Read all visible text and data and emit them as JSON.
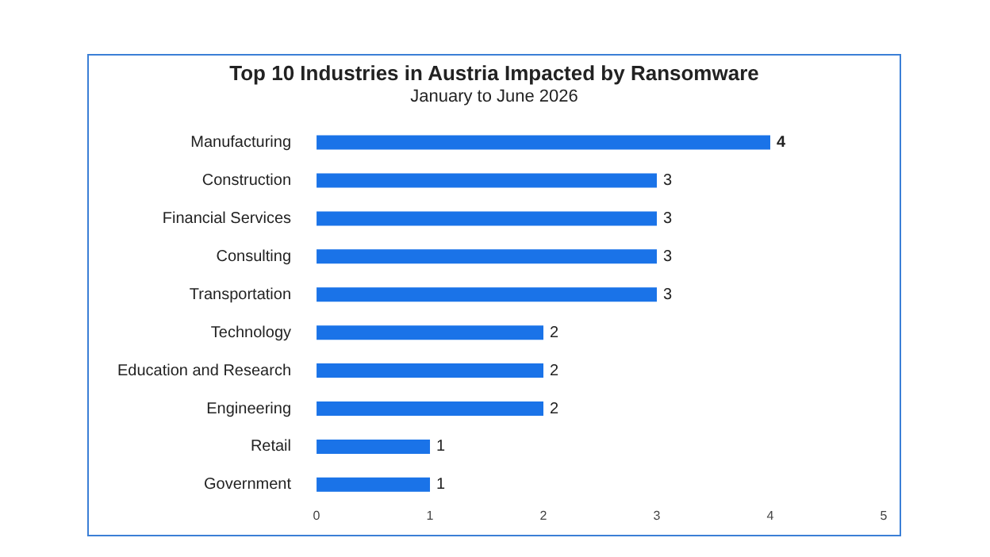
{
  "chart_data": {
    "type": "bar",
    "orientation": "horizontal",
    "title": "Top 10 Industries in Austria Impacted by Ransomware",
    "subtitle": "January to June 2026",
    "categories": [
      "Manufacturing",
      "Construction",
      "Financial Services",
      "Consulting",
      "Transportation",
      "Technology",
      "Education and Research",
      "Engineering",
      "Retail",
      "Government"
    ],
    "values": [
      4,
      3,
      3,
      3,
      3,
      2,
      2,
      2,
      1,
      1
    ],
    "color": "#1a73e8",
    "xlim": [
      0,
      5
    ],
    "xticks": [
      0,
      1,
      2,
      3,
      4,
      5
    ],
    "data_labels": true
  }
}
